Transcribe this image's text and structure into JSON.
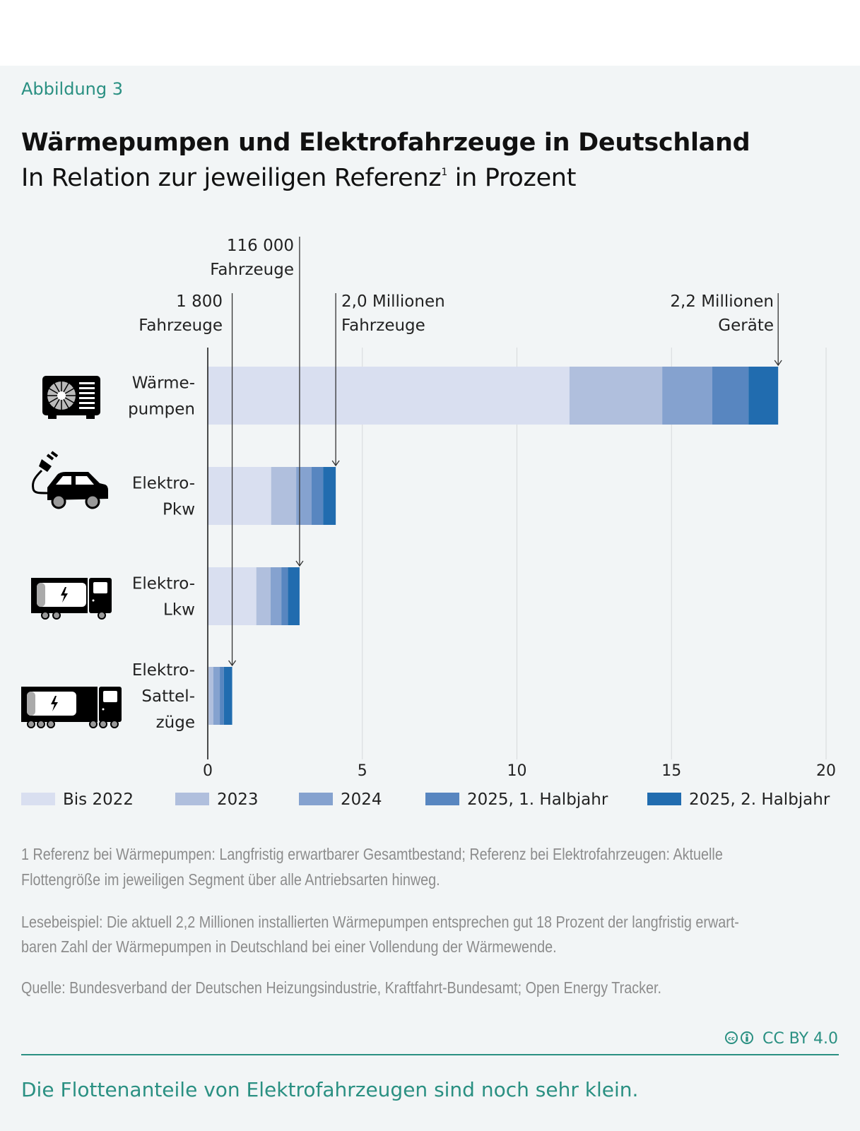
{
  "figure_label": "Abbildung 3",
  "title": "Wärmepumpen und Elektrofahrzeuge in Deutschland",
  "subtitle": "In Relation zur jeweiligen Referenz",
  "subtitle_footnote_mark": "1",
  "chart_data": {
    "type": "bar",
    "orientation": "horizontal",
    "stacked": true,
    "xlim": [
      0,
      20
    ],
    "xticks": [
      "0",
      "5",
      "10",
      "15",
      "20"
    ],
    "grid": true,
    "legend_placement": "bottom",
    "categories": [
      {
        "label_lines": [
          "Wärme-",
          "pumpen"
        ],
        "icon": "heat-pump-icon"
      },
      {
        "label_lines": [
          "Elektro-",
          "Pkw"
        ],
        "icon": "electric-car-icon"
      },
      {
        "label_lines": [
          "Elektro-",
          "Lkw"
        ],
        "icon": "electric-truck-icon"
      },
      {
        "label_lines": [
          "Elektro-",
          "Sattel-",
          "züge"
        ],
        "icon": "electric-semi-truck-icon"
      }
    ],
    "series": [
      {
        "name": "Bis 2022",
        "color": "#d9dff0",
        "values": [
          11.7,
          2.05,
          1.57,
          0.03
        ]
      },
      {
        "name": "2023",
        "color": "#b0bfdd",
        "values": [
          3.0,
          0.81,
          0.46,
          0.15
        ]
      },
      {
        "name": "2024",
        "color": "#85a2cf",
        "values": [
          1.62,
          0.5,
          0.35,
          0.21
        ]
      },
      {
        "name": "2025, 1. Halbjahr",
        "color": "#5886c0",
        "values": [
          1.17,
          0.37,
          0.21,
          0.13
        ]
      },
      {
        "name": "2025, 2. Halbjahr",
        "color": "#216caf",
        "values": [
          0.96,
          0.41,
          0.38,
          0.27
        ]
      }
    ],
    "annotations": [
      {
        "category": 0,
        "lines": [
          "2,2 Millionen",
          "Geräte"
        ]
      },
      {
        "category": 1,
        "lines": [
          "2,0 Millionen",
          "Fahrzeuge"
        ]
      },
      {
        "category": 2,
        "lines": [
          "116 000",
          "Fahrzeuge"
        ]
      },
      {
        "category": 3,
        "lines": [
          "1 800",
          "Fahrzeuge"
        ]
      }
    ]
  },
  "footnotes": {
    "note1_line1": "1   Referenz bei Wärmepumpen: Langfristig erwartbarer Gesamtbestand; Referenz bei Elektrofahrzeugen: Aktuelle",
    "note1_line2": "Flottengröße im jeweiligen Segment über alle Antriebsarten hinweg.",
    "example_line1": "Lesebeispiel: Die aktuell 2,2 Millionen installierten Wärmepumpen entsprechen gut 18 Prozent der langfristig erwart-",
    "example_line2": "baren Zahl der Wärmepumpen in Deutschland bei einer Vollendung der Wärmewende.",
    "source": "Quelle: Bundesverband der Deutschen Heizungsindustrie, Kraftfahrt-Bundesamt; Open Energy Tracker."
  },
  "license": "CC BY 4.0",
  "takeaway": "Die Flottenanteile von Elektrofahrzeugen sind noch sehr klein.",
  "colors": {
    "accent": "#2a9082",
    "background": "#f2f5f6"
  }
}
